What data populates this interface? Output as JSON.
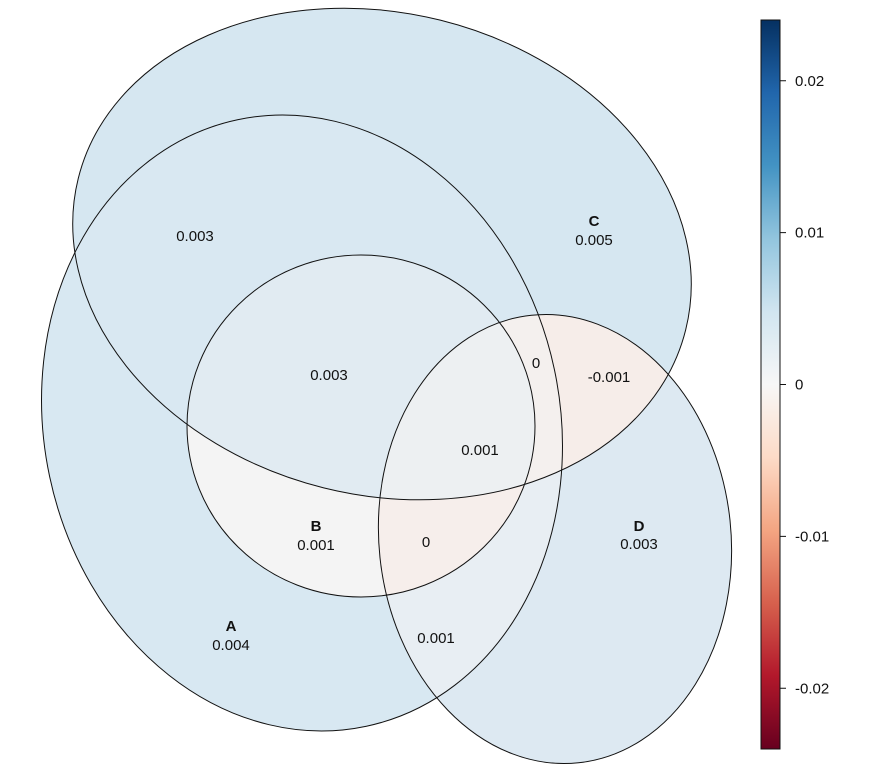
{
  "chart_data": {
    "type": "venn",
    "sets": [
      "A",
      "B",
      "C",
      "D"
    ],
    "regions": [
      {
        "key": "A",
        "sets": [
          "A"
        ],
        "value": "0.004"
      },
      {
        "key": "B",
        "sets": [
          "B"
        ],
        "value": "0.001"
      },
      {
        "key": "C",
        "sets": [
          "C"
        ],
        "value": "0.005"
      },
      {
        "key": "D",
        "sets": [
          "D"
        ],
        "value": "0.003"
      },
      {
        "key": "AC",
        "sets": [
          "A",
          "C"
        ],
        "value": "0.003"
      },
      {
        "key": "ABC",
        "sets": [
          "A",
          "B",
          "C"
        ],
        "value": "0.003"
      },
      {
        "key": "AD",
        "sets": [
          "A",
          "D"
        ],
        "value": "0.001"
      },
      {
        "key": "ABD",
        "sets": [
          "A",
          "B",
          "D"
        ],
        "value": "0"
      },
      {
        "key": "ABCD",
        "sets": [
          "A",
          "B",
          "C",
          "D"
        ],
        "value": "0.001"
      },
      {
        "key": "ACD",
        "sets": [
          "A",
          "C",
          "D"
        ],
        "value": "0"
      },
      {
        "key": "CD",
        "sets": [
          "C",
          "D"
        ],
        "value": "-0.001"
      }
    ],
    "colorbar": {
      "min": -0.024,
      "max": 0.024,
      "ticks": [
        0.02,
        0.01,
        0,
        -0.01,
        -0.02
      ],
      "tick_labels": [
        "0.02",
        "0.01",
        "0",
        "-0.01",
        "-0.02"
      ],
      "colors": [
        "#67001F",
        "#B2182B",
        "#D6604D",
        "#F4A582",
        "#FDDBC7",
        "#F7F7F7",
        "#D1E5F0",
        "#92C5DE",
        "#4393C3",
        "#2166AC",
        "#053061"
      ]
    }
  }
}
